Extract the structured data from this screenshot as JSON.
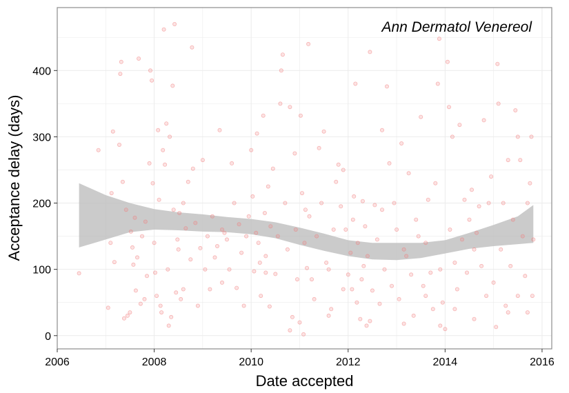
{
  "chart_data": {
    "type": "scatter",
    "title": "Ann Dermatol Venereol",
    "xlabel": "Date accepted",
    "ylabel": "Acceptance delay (days)",
    "xlim": [
      2006,
      2016.2
    ],
    "ylim": [
      -20,
      495
    ],
    "x_ticks": [
      2006,
      2008,
      2010,
      2012,
      2014,
      2016
    ],
    "y_ticks": [
      0,
      100,
      200,
      300,
      400
    ],
    "x_tick_labels": [
      "2006",
      "2008",
      "2010",
      "2012",
      "2014",
      "2016"
    ],
    "y_tick_labels": [
      "0",
      "100",
      "200",
      "300",
      "400"
    ],
    "grid": true,
    "legend": "none",
    "colors": {
      "points": "#f08080",
      "band": "#bebebe",
      "grid": "#ebebeb",
      "border": "#8c8c8c"
    },
    "series": [
      {
        "points": [
          [
            2006.45,
            94
          ],
          [
            2006.85,
            280
          ],
          [
            2007.05,
            42
          ],
          [
            2007.12,
            215
          ],
          [
            2007.15,
            308
          ],
          [
            2007.1,
            140
          ],
          [
            2007.18,
            111
          ],
          [
            2007.28,
            288
          ],
          [
            2007.3,
            395
          ],
          [
            2007.32,
            413
          ],
          [
            2007.35,
            232
          ],
          [
            2007.38,
            26
          ],
          [
            2007.42,
            190
          ],
          [
            2007.45,
            30
          ],
          [
            2007.5,
            35
          ],
          [
            2007.52,
            157
          ],
          [
            2007.55,
            133
          ],
          [
            2007.57,
            107
          ],
          [
            2007.6,
            178
          ],
          [
            2007.62,
            68
          ],
          [
            2007.65,
            118
          ],
          [
            2007.68,
            418
          ],
          [
            2007.72,
            48
          ],
          [
            2007.75,
            150
          ],
          [
            2007.82,
            172
          ],
          [
            2007.85,
            90
          ],
          [
            2007.9,
            260
          ],
          [
            2007.92,
            400
          ],
          [
            2007.95,
            385
          ],
          [
            2007.97,
            230
          ],
          [
            2008.0,
            140
          ],
          [
            2008.02,
            95
          ],
          [
            2008.05,
            60
          ],
          [
            2008.08,
            310
          ],
          [
            2008.1,
            205
          ],
          [
            2008.13,
            45
          ],
          [
            2008.15,
            35
          ],
          [
            2008.18,
            280
          ],
          [
            2008.2,
            462
          ],
          [
            2008.22,
            258
          ],
          [
            2008.25,
            320
          ],
          [
            2008.28,
            100
          ],
          [
            2008.3,
            15
          ],
          [
            2008.32,
            300
          ],
          [
            2008.35,
            28
          ],
          [
            2008.38,
            377
          ],
          [
            2008.4,
            190
          ],
          [
            2008.42,
            470
          ],
          [
            2008.45,
            65
          ],
          [
            2008.48,
            145
          ],
          [
            2008.5,
            130
          ],
          [
            2008.52,
            185
          ],
          [
            2008.55,
            55
          ],
          [
            2008.6,
            200
          ],
          [
            2008.65,
            162
          ],
          [
            2008.7,
            232
          ],
          [
            2008.75,
            115
          ],
          [
            2008.78,
            435
          ],
          [
            2008.8,
            252
          ],
          [
            2008.85,
            170
          ],
          [
            2008.9,
            45
          ],
          [
            2008.95,
            132
          ],
          [
            2009.0,
            265
          ],
          [
            2009.05,
            100
          ],
          [
            2009.1,
            150
          ],
          [
            2009.15,
            70
          ],
          [
            2009.2,
            180
          ],
          [
            2009.25,
            118
          ],
          [
            2009.3,
            135
          ],
          [
            2009.35,
            310
          ],
          [
            2009.4,
            80
          ],
          [
            2009.45,
            155
          ],
          [
            2009.5,
            145
          ],
          [
            2009.55,
            100
          ],
          [
            2009.6,
            260
          ],
          [
            2009.65,
            200
          ],
          [
            2009.7,
            72
          ],
          [
            2009.75,
            168
          ],
          [
            2009.8,
            125
          ],
          [
            2009.85,
            45
          ],
          [
            2009.9,
            150
          ],
          [
            2009.95,
            180
          ],
          [
            2010.0,
            280
          ],
          [
            2010.03,
            210
          ],
          [
            2010.06,
            97
          ],
          [
            2010.1,
            155
          ],
          [
            2010.12,
            305
          ],
          [
            2010.15,
            140
          ],
          [
            2010.18,
            110
          ],
          [
            2010.2,
            60
          ],
          [
            2010.25,
            332
          ],
          [
            2010.28,
            185
          ],
          [
            2010.3,
            120
          ],
          [
            2010.35,
            225
          ],
          [
            2010.38,
            44
          ],
          [
            2010.4,
            165
          ],
          [
            2010.45,
            252
          ],
          [
            2010.5,
            93
          ],
          [
            2010.55,
            150
          ],
          [
            2010.6,
            350
          ],
          [
            2010.62,
            400
          ],
          [
            2010.65,
            424
          ],
          [
            2010.7,
            200
          ],
          [
            2010.75,
            130
          ],
          [
            2010.8,
            345
          ],
          [
            2010.85,
            28
          ],
          [
            2010.9,
            275
          ],
          [
            2010.92,
            160
          ],
          [
            2010.95,
            85
          ],
          [
            2011.0,
            20
          ],
          [
            2011.02,
            332
          ],
          [
            2011.05,
            215
          ],
          [
            2011.08,
            2
          ],
          [
            2011.1,
            140
          ],
          [
            2011.12,
            190
          ],
          [
            2011.15,
            102
          ],
          [
            2011.18,
            440
          ],
          [
            2011.2,
            180
          ],
          [
            2011.25,
            85
          ],
          [
            2011.3,
            55
          ],
          [
            2011.35,
            150
          ],
          [
            2011.4,
            283
          ],
          [
            2011.45,
            200
          ],
          [
            2011.5,
            308
          ],
          [
            2011.55,
            110
          ],
          [
            2011.6,
            100
          ],
          [
            2011.65,
            40
          ],
          [
            2011.7,
            160
          ],
          [
            2011.75,
            232
          ],
          [
            2011.8,
            258
          ],
          [
            2011.85,
            195
          ],
          [
            2011.9,
            250
          ],
          [
            2011.95,
            160
          ],
          [
            2012.0,
            92
          ],
          [
            2012.05,
            125
          ],
          [
            2012.08,
            70
          ],
          [
            2012.1,
            175
          ],
          [
            2012.12,
            210
          ],
          [
            2012.15,
            380
          ],
          [
            2012.18,
            50
          ],
          [
            2012.2,
            140
          ],
          [
            2012.25,
            25
          ],
          [
            2012.28,
            85
          ],
          [
            2012.3,
            203
          ],
          [
            2012.32,
            105
          ],
          [
            2012.35,
            165
          ],
          [
            2012.38,
            15
          ],
          [
            2012.4,
            120
          ],
          [
            2012.45,
            428
          ],
          [
            2012.5,
            68
          ],
          [
            2012.55,
            197
          ],
          [
            2012.6,
            145
          ],
          [
            2012.65,
            48
          ],
          [
            2012.7,
            310
          ],
          [
            2012.75,
            100
          ],
          [
            2012.8,
            376
          ],
          [
            2012.85,
            260
          ],
          [
            2012.9,
            75
          ],
          [
            2012.95,
            200
          ],
          [
            2013.0,
            160
          ],
          [
            2013.05,
            55
          ],
          [
            2013.1,
            290
          ],
          [
            2013.15,
            130
          ],
          [
            2013.2,
            120
          ],
          [
            2013.25,
            245
          ],
          [
            2013.3,
            92
          ],
          [
            2013.35,
            30
          ],
          [
            2013.4,
            175
          ],
          [
            2013.45,
            150
          ],
          [
            2013.5,
            330
          ],
          [
            2013.55,
            75
          ],
          [
            2013.6,
            140
          ],
          [
            2013.65,
            205
          ],
          [
            2013.7,
            95
          ],
          [
            2013.75,
            40
          ],
          [
            2013.8,
            230
          ],
          [
            2013.85,
            380
          ],
          [
            2013.88,
            448
          ],
          [
            2013.9,
            100
          ],
          [
            2013.95,
            50
          ],
          [
            2014.0,
            10
          ],
          [
            2014.05,
            413
          ],
          [
            2014.08,
            345
          ],
          [
            2014.1,
            160
          ],
          [
            2014.15,
            300
          ],
          [
            2014.2,
            110
          ],
          [
            2014.25,
            70
          ],
          [
            2014.3,
            318
          ],
          [
            2014.35,
            145
          ],
          [
            2014.4,
            205
          ],
          [
            2014.45,
            95
          ],
          [
            2014.5,
            175
          ],
          [
            2014.55,
            220
          ],
          [
            2014.6,
            25
          ],
          [
            2014.65,
            155
          ],
          [
            2014.7,
            195
          ],
          [
            2014.75,
            105
          ],
          [
            2014.8,
            325
          ],
          [
            2014.85,
            60
          ],
          [
            2014.9,
            200
          ],
          [
            2014.95,
            240
          ],
          [
            2015.0,
            80
          ],
          [
            2015.05,
            13
          ],
          [
            2015.08,
            410
          ],
          [
            2015.1,
            350
          ],
          [
            2015.15,
            130
          ],
          [
            2015.2,
            200
          ],
          [
            2015.25,
            45
          ],
          [
            2015.3,
            265
          ],
          [
            2015.35,
            105
          ],
          [
            2015.4,
            175
          ],
          [
            2015.45,
            340
          ],
          [
            2015.5,
            300
          ],
          [
            2015.55,
            265
          ],
          [
            2015.6,
            150
          ],
          [
            2015.65,
            90
          ],
          [
            2015.7,
            200
          ],
          [
            2015.75,
            230
          ],
          [
            2015.78,
            300
          ],
          [
            2015.8,
            60
          ],
          [
            2015.82,
            145
          ],
          [
            2015.7,
            35
          ],
          [
            2015.5,
            60
          ],
          [
            2015.3,
            35
          ],
          [
            2014.2,
            40
          ],
          [
            2013.9,
            15
          ],
          [
            2013.15,
            18
          ],
          [
            2012.45,
            22
          ],
          [
            2011.6,
            30
          ],
          [
            2010.8,
            8
          ],
          [
            2009.4,
            160
          ],
          [
            2008.6,
            70
          ],
          [
            2007.8,
            55
          ],
          [
            2010.3,
            95
          ],
          [
            2012.7,
            190
          ],
          [
            2013.6,
            60
          ],
          [
            2014.6,
            130
          ],
          [
            2011.9,
            70
          ]
        ]
      }
    ],
    "smooth_band": {
      "x": [
        2006.45,
        2007.0,
        2007.5,
        2008.0,
        2008.5,
        2009.0,
        2009.5,
        2010.0,
        2010.5,
        2011.0,
        2011.5,
        2012.0,
        2012.5,
        2013.0,
        2013.5,
        2014.0,
        2014.5,
        2015.0,
        2015.5,
        2015.82
      ],
      "upper": [
        230,
        212,
        200,
        191,
        186,
        183,
        179,
        176,
        171,
        163,
        154,
        144,
        140,
        140,
        140,
        144,
        155,
        167,
        180,
        197
      ],
      "lower": [
        133,
        145,
        156,
        160,
        159,
        157,
        156,
        153,
        147,
        137,
        128,
        120,
        115,
        114,
        117,
        124,
        131,
        135,
        138,
        140
      ]
    }
  }
}
